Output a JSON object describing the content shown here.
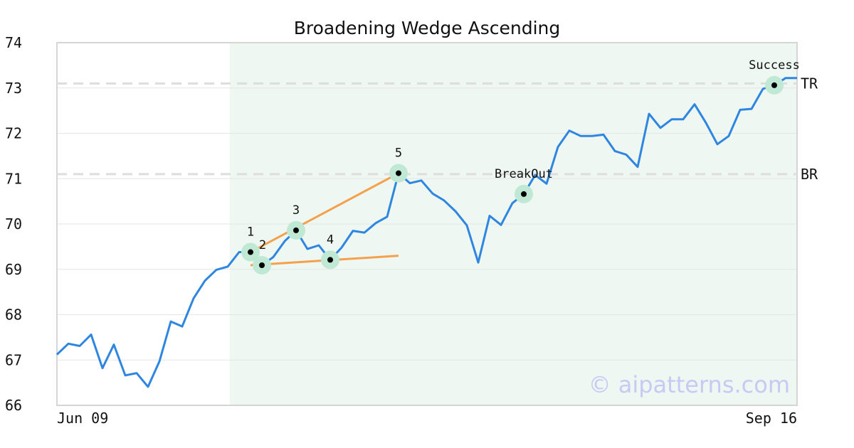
{
  "colors": {
    "price_line": "#2e86e0",
    "wedge_lines": "#f5a04a",
    "marker_halo": "#bfe9d4",
    "marker_dot": "#000000",
    "pattern_shade": "#eef7f2",
    "level_lines": "#dddddd",
    "grid": "#e6e6e6",
    "frame": "#d5d5d5",
    "watermark": "#c9c9f3"
  },
  "watermark": "© aipatterns.com",
  "chart_data": {
    "type": "line",
    "title": "Broadening Wedge Ascending",
    "xlabel": "",
    "ylabel": "",
    "ylim": [
      66,
      74
    ],
    "yticks": [
      66,
      67,
      68,
      69,
      70,
      71,
      72,
      73,
      74
    ],
    "x_tick_labels": [
      {
        "index": 0,
        "label": "Jun 09"
      },
      {
        "index": 65,
        "label": "Sep 16"
      }
    ],
    "grid": true,
    "values": [
      67.12,
      67.36,
      67.31,
      67.56,
      66.82,
      67.34,
      66.66,
      66.71,
      66.41,
      66.97,
      67.85,
      67.74,
      68.36,
      68.75,
      68.99,
      69.06,
      69.38,
      69.38,
      69.09,
      69.27,
      69.62,
      69.86,
      69.45,
      69.53,
      69.21,
      69.48,
      69.85,
      69.81,
      70.02,
      70.16,
      71.12,
      70.9,
      70.96,
      70.67,
      70.52,
      70.28,
      69.97,
      69.15,
      70.18,
      69.98,
      70.46,
      70.66,
      71.08,
      70.89,
      71.7,
      72.06,
      71.94,
      71.94,
      71.97,
      71.61,
      71.53,
      71.26,
      72.43,
      72.12,
      72.31,
      72.31,
      72.64,
      72.23,
      71.76,
      71.94,
      72.52,
      72.54,
      72.98,
      73.06,
      73.22,
      73.22
    ],
    "shaded_region": {
      "x_start": 15,
      "x_end": 65
    },
    "levels": [
      {
        "label": "TR",
        "value": 73.1
      },
      {
        "label": "BR",
        "value": 71.1
      }
    ],
    "markers": [
      {
        "label": "1",
        "index": 17,
        "value": 69.38
      },
      {
        "label": "2",
        "index": 18,
        "value": 69.09
      },
      {
        "label": "3",
        "index": 21,
        "value": 69.86
      },
      {
        "label": "4",
        "index": 24,
        "value": 69.21
      },
      {
        "label": "5",
        "index": 30,
        "value": 71.12
      },
      {
        "label": "BreakOut",
        "index": 41,
        "value": 70.66
      },
      {
        "label": "Success",
        "index": 63,
        "value": 73.06
      }
    ],
    "trendlines": [
      {
        "from": {
          "index": 17,
          "value": 69.38
        },
        "to": {
          "index": 30,
          "value": 71.12
        }
      },
      {
        "from": {
          "index": 17,
          "value": 69.09
        },
        "to": {
          "index": 30,
          "value": 69.3
        }
      }
    ]
  }
}
